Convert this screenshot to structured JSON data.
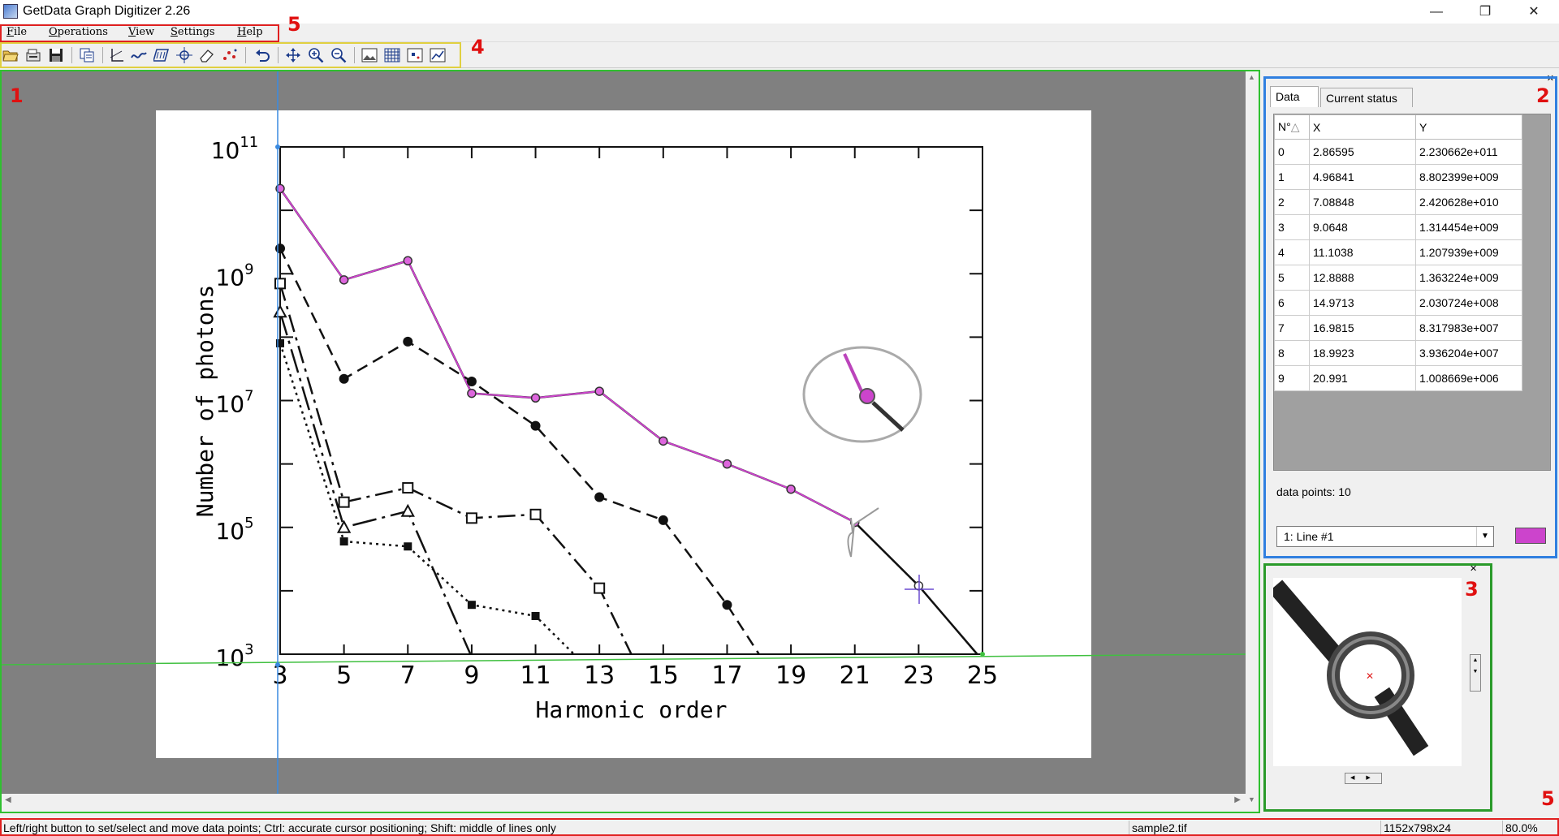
{
  "window": {
    "title": "GetData Graph Digitizer 2.26"
  },
  "menu": {
    "items": [
      {
        "label": "File",
        "u": "F",
        "rest": "ile"
      },
      {
        "label": "Operations",
        "u": "O",
        "rest": "perations"
      },
      {
        "label": "View",
        "u": "V",
        "rest": "iew"
      },
      {
        "label": "Settings",
        "u": "S",
        "rest": "ettings"
      },
      {
        "label": "Help",
        "u": "H",
        "rest": "elp"
      }
    ]
  },
  "annotations": {
    "workspace": "1",
    "data_panel": "2",
    "zoom_panel": "3",
    "toolbar": "4",
    "menu": "5",
    "status": "5"
  },
  "plot": {
    "ylabel": "Number of photons",
    "xlabel": "Harmonic order",
    "x_ticks": [
      "3",
      "5",
      "7",
      "9",
      "11",
      "13",
      "15",
      "17",
      "19",
      "21",
      "23",
      "25"
    ],
    "y_ticks": [
      {
        "base": "10",
        "exp": "11"
      },
      {
        "base": "10",
        "exp": "9"
      },
      {
        "base": "10",
        "exp": "7"
      },
      {
        "base": "10",
        "exp": "5"
      },
      {
        "base": "10",
        "exp": "3"
      }
    ]
  },
  "chart_data": {
    "type": "line",
    "title": "",
    "xlabel": "Harmonic order",
    "ylabel": "Number of photons",
    "yscale": "log",
    "xlim": [
      3,
      25
    ],
    "ylim": [
      1000,
      100000000000
    ],
    "series": [
      {
        "name": "",
        "marker": "open-circle-magenta",
        "x": [
          3,
          5,
          7,
          9,
          11,
          13,
          15,
          17,
          19,
          21,
          23,
          25
        ],
        "values": [
          22000000000,
          800000000,
          1600000000,
          13000000,
          11000000,
          14000000,
          2300000,
          1000000,
          400000,
          120000,
          12000,
          800
        ]
      },
      {
        "name": "",
        "marker": "filled-circle",
        "x": [
          3,
          5,
          7,
          9,
          11,
          13,
          15,
          17,
          18
        ],
        "values": [
          2500000000,
          22000000,
          85000000,
          20000000,
          4000000,
          300000,
          130000,
          6000,
          1000
        ]
      },
      {
        "name": "",
        "marker": "open-square",
        "x": [
          3,
          5,
          7,
          9,
          11,
          13,
          14
        ],
        "values": [
          700000000,
          250000,
          420000,
          140000,
          160000,
          11000,
          1000
        ]
      },
      {
        "name": "",
        "marker": "filled-square",
        "x": [
          3,
          5,
          7,
          9,
          11,
          13,
          13.5
        ],
        "values": [
          80000000,
          60000,
          50000,
          6000,
          4000,
          400,
          1000
        ]
      },
      {
        "name": "",
        "marker": "open-triangle",
        "x": [
          3,
          5,
          7,
          9
        ],
        "values": [
          250000000,
          100000,
          180000,
          900
        ]
      }
    ]
  },
  "data_panel": {
    "tabs": [
      "Data",
      "Current status"
    ],
    "columns": [
      "N°",
      "X",
      "Y"
    ],
    "rows": [
      [
        "0",
        "2.86595",
        "2.230662e+011"
      ],
      [
        "1",
        "4.96841",
        "8.802399e+009"
      ],
      [
        "2",
        "7.08848",
        "2.420628e+010"
      ],
      [
        "3",
        "9.0648",
        "1.314454e+009"
      ],
      [
        "4",
        "11.1038",
        "1.207939e+009"
      ],
      [
        "5",
        "12.8888",
        "1.363224e+009"
      ],
      [
        "6",
        "14.9713",
        "2.030724e+008"
      ],
      [
        "7",
        "16.9815",
        "8.317983e+007"
      ],
      [
        "8",
        "18.9923",
        "3.936204e+007"
      ],
      [
        "9",
        "20.991",
        "1.008669e+006"
      ]
    ],
    "points_label": "data points: 10",
    "line_select": "1: Line #1",
    "line_color": "#cc44cc"
  },
  "status": {
    "hint": "Left/right button to set/select and move data points; Ctrl: accurate cursor positioning; Shift: middle of lines only",
    "file": "sample2.tif",
    "size": "1152x798x24",
    "zoom": "80.0%"
  }
}
